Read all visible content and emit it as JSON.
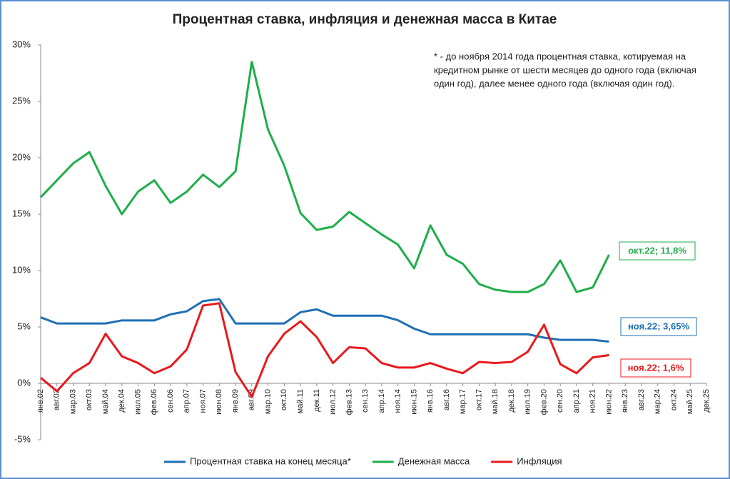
{
  "chart_data": {
    "type": "line",
    "title": "Процентная ставка, инфляция и денежная масса в Китае",
    "note": [
      "* - до ноября 2014 года процентная ставка, котируемая на",
      "кредитном рынке от шести месяцев до одного года (включая",
      "один год), далее менее одного года (включая один год)."
    ],
    "categories": [
      "янв.02",
      "авг.02",
      "мар.03",
      "окт.03",
      "май.04",
      "дек.04",
      "июл.05",
      "фев.06",
      "сен.06",
      "апр.07",
      "ноя.07",
      "июн.08",
      "янв.09",
      "авг.09",
      "мар.10",
      "окт.10",
      "май.11",
      "дек.11",
      "июл.12",
      "фев.13",
      "сен.13",
      "апр.14",
      "ноя.14",
      "июн.15",
      "янв.16",
      "авг.16",
      "мар.17",
      "окт.17",
      "май.18",
      "дек.18",
      "июл.19",
      "фев.20",
      "сен.20",
      "апр.21",
      "ноя.21",
      "июн.22",
      "янв.23",
      "авг.23",
      "мар.24",
      "окт.24",
      "май.25",
      "дек.25"
    ],
    "series": [
      {
        "name": "Процентная ставка на конец месяца*",
        "color": "#1f6fb5",
        "values": [
          5.85,
          5.31,
          5.31,
          5.31,
          5.31,
          5.58,
          5.58,
          5.58,
          6.12,
          6.39,
          7.29,
          7.47,
          5.31,
          5.31,
          5.31,
          5.31,
          6.31,
          6.56,
          6.0,
          6.0,
          6.0,
          6.0,
          5.6,
          4.85,
          4.35,
          4.35,
          4.35,
          4.35,
          4.35,
          4.35,
          4.35,
          4.05,
          3.85,
          3.85,
          3.85,
          3.7,
          null,
          null,
          null,
          null,
          null,
          null
        ]
      },
      {
        "name": "Денежная масса",
        "color": "#1fae4b",
        "values": [
          16.5,
          18.0,
          19.5,
          20.5,
          17.5,
          15.0,
          17.0,
          18.0,
          16.0,
          17.0,
          18.5,
          17.4,
          18.8,
          28.5,
          22.5,
          19.3,
          15.1,
          13.6,
          13.9,
          15.2,
          14.2,
          13.2,
          12.3,
          10.2,
          14.0,
          11.4,
          10.6,
          8.8,
          8.3,
          8.1,
          8.1,
          8.8,
          10.9,
          8.1,
          8.5,
          11.4,
          null,
          null,
          null,
          null,
          null,
          null
        ]
      },
      {
        "name": "Инфляция",
        "color": "#e8191c",
        "values": [
          0.5,
          -0.7,
          0.9,
          1.8,
          4.4,
          2.4,
          1.8,
          0.9,
          1.5,
          3.0,
          6.9,
          7.1,
          1.0,
          -1.2,
          2.4,
          4.4,
          5.5,
          4.1,
          1.8,
          3.2,
          3.1,
          1.8,
          1.4,
          1.4,
          1.8,
          1.3,
          0.9,
          1.9,
          1.8,
          1.9,
          2.8,
          5.2,
          1.7,
          0.9,
          2.3,
          2.5,
          null,
          null,
          null,
          null,
          null,
          null
        ]
      }
    ],
    "annotations": [
      "окт.22; 11,8%",
      "ноя.22; 3,65%",
      "ноя.22; 1,6%"
    ],
    "ylim": [
      -5,
      30
    ],
    "yticks": [
      {
        "value": 30,
        "label": "30%"
      },
      {
        "value": 25,
        "label": "25%"
      },
      {
        "value": 20,
        "label": "20%"
      },
      {
        "value": 15,
        "label": "15%"
      },
      {
        "value": 10,
        "label": "10%"
      },
      {
        "value": 5,
        "label": "5%"
      },
      {
        "value": 0,
        "label": "0%"
      },
      {
        "value": -5,
        "label": "-5%"
      }
    ],
    "grid": false,
    "legend": "bottom"
  }
}
